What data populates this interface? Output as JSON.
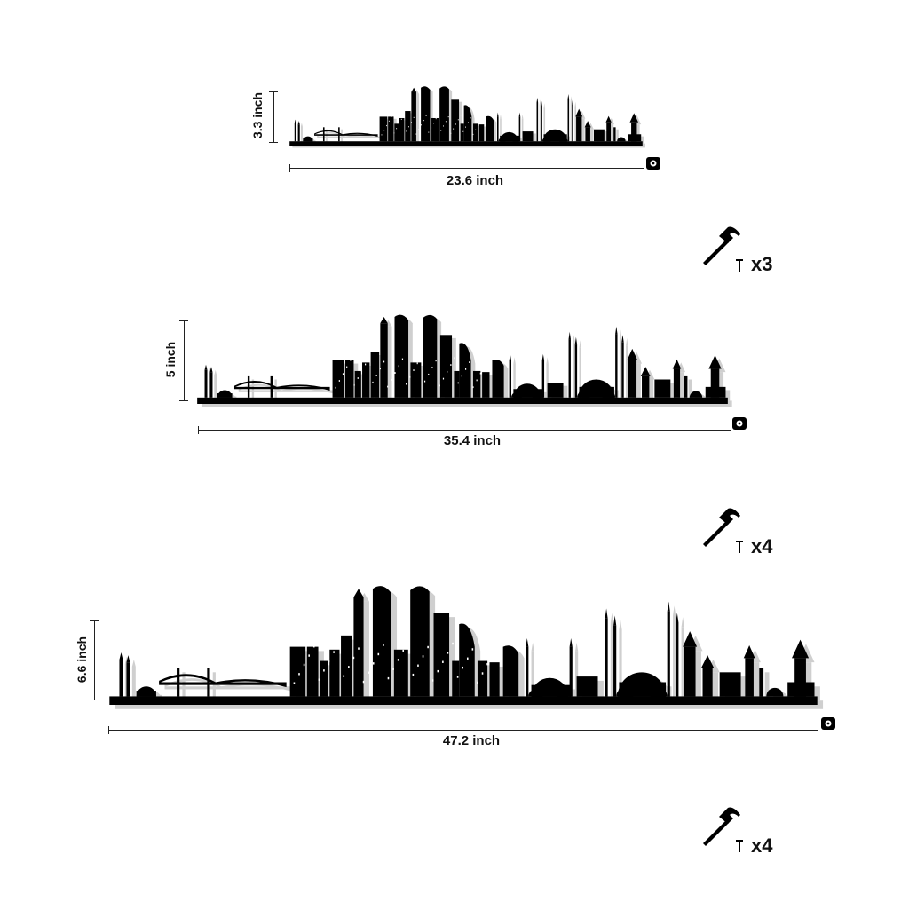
{
  "items": [
    {
      "height_label": "3.3 inch",
      "width_label": "23.6 inch",
      "quantity_label": "x3",
      "nail_count": 3
    },
    {
      "height_label": "5 inch",
      "width_label": "35.4 inch",
      "quantity_label": "x4",
      "nail_count": 4
    },
    {
      "height_label": "6.6 inch",
      "width_label": "47.2 inch",
      "quantity_label": "x4",
      "nail_count": 4
    }
  ],
  "colors": {
    "silhouette": "#000000",
    "shadow": "#cfcfcf",
    "line": "#222222",
    "background": "#ffffff"
  },
  "icons": {
    "tape": "tape-measure-icon",
    "hammer": "hammer-icon",
    "nail": "nail-icon"
  }
}
